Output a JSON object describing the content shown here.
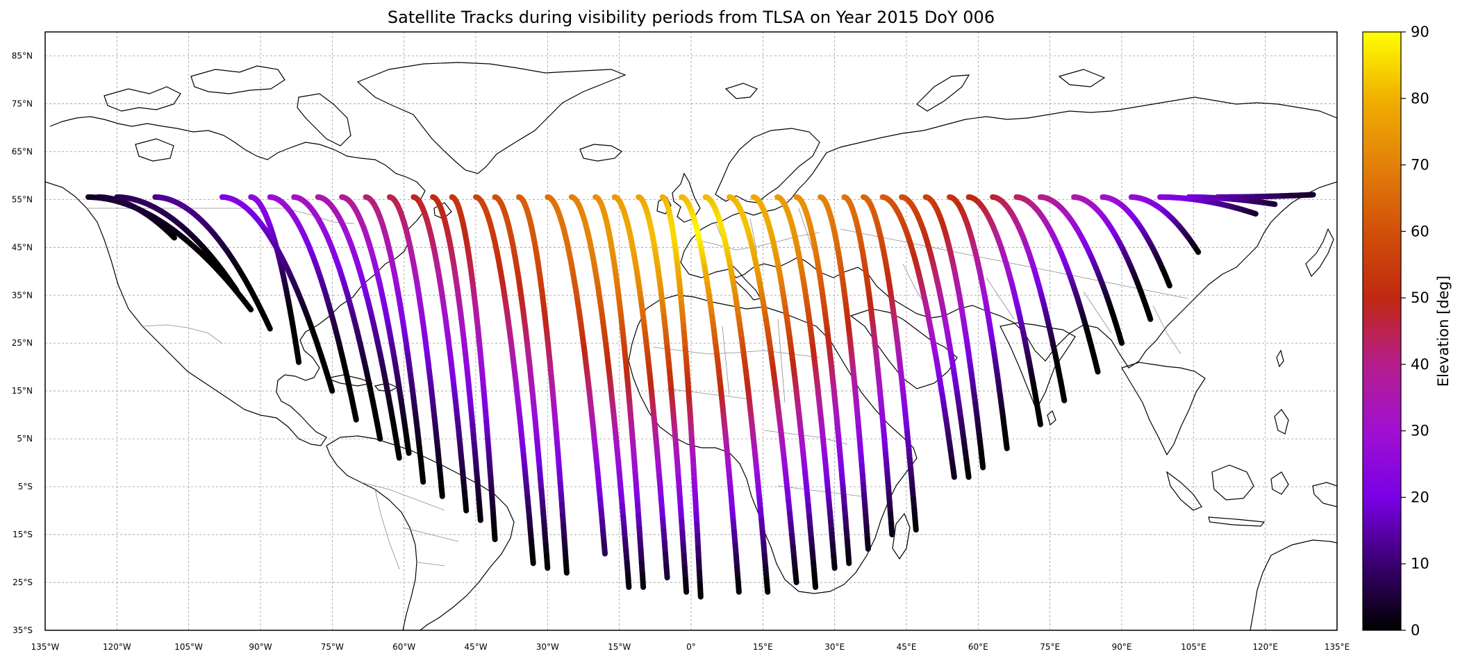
{
  "map": {
    "title": "Satellite Tracks during visibility periods from TLSA on Year 2015 DoY 006",
    "extent": {
      "lon_min": -135,
      "lon_max": 135,
      "lat_min": -35,
      "lat_max": 90
    },
    "lat_ticks": [
      {
        "value": 85,
        "label": "85°N"
      },
      {
        "value": 75,
        "label": "75°N"
      },
      {
        "value": 65,
        "label": "65°N"
      },
      {
        "value": 55,
        "label": "55°N"
      },
      {
        "value": 45,
        "label": "45°N"
      },
      {
        "value": 35,
        "label": "35°N"
      },
      {
        "value": 25,
        "label": "25°N"
      },
      {
        "value": 15,
        "label": "15°N"
      },
      {
        "value": 5,
        "label": "5°N"
      },
      {
        "value": -5,
        "label": "5°S"
      },
      {
        "value": -15,
        "label": "15°S"
      },
      {
        "value": -25,
        "label": "25°S"
      },
      {
        "value": -35,
        "label": "35°S"
      }
    ],
    "lon_ticks": [
      {
        "value": -135,
        "label": "135°W"
      },
      {
        "value": -120,
        "label": "120°W"
      },
      {
        "value": -105,
        "label": "105°W"
      },
      {
        "value": -90,
        "label": "90°W"
      },
      {
        "value": -75,
        "label": "75°W"
      },
      {
        "value": -60,
        "label": "60°W"
      },
      {
        "value": -45,
        "label": "45°W"
      },
      {
        "value": -30,
        "label": "30°W"
      },
      {
        "value": -15,
        "label": "15°W"
      },
      {
        "value": 0,
        "label": "0°"
      },
      {
        "value": 15,
        "label": "15°E"
      },
      {
        "value": 30,
        "label": "30°E"
      },
      {
        "value": 45,
        "label": "45°E"
      },
      {
        "value": 60,
        "label": "60°E"
      },
      {
        "value": 75,
        "label": "75°E"
      },
      {
        "value": 90,
        "label": "90°E"
      },
      {
        "value": 105,
        "label": "105°E"
      },
      {
        "value": 120,
        "label": "120°E"
      },
      {
        "value": 135,
        "label": "135°E"
      }
    ],
    "station": {
      "lon": 2,
      "lat": 48
    },
    "colorbar": {
      "label": "Elevation [deg]",
      "min": 0,
      "max": 90,
      "ticks": [
        "0",
        "10",
        "20",
        "30",
        "40",
        "50",
        "60",
        "70",
        "80",
        "90"
      ],
      "colormap": "gnuplot",
      "stops": [
        "#000000",
        "#3a0070",
        "#7a00e6",
        "#a010d0",
        "#b51e8c",
        "#c02810",
        "#d2500a",
        "#e3800a",
        "#f0b000",
        "#ffff00"
      ]
    },
    "tracks": [
      {
        "lon_start": -126,
        "lon_end": -92,
        "lat_end": 32
      },
      {
        "lon_start": -124,
        "lon_end": -108,
        "lat_end": 47
      },
      {
        "lon_start": -120,
        "lon_end": -95,
        "lat_end": 36
      },
      {
        "lon_start": -112,
        "lon_end": -88,
        "lat_end": 28
      },
      {
        "lon_start": -98,
        "lon_end": -75,
        "lat_end": 15
      },
      {
        "lon_start": -92,
        "lon_end": -82,
        "lat_end": 21
      },
      {
        "lon_start": -88,
        "lon_end": -70,
        "lat_end": 9
      },
      {
        "lon_start": -83,
        "lon_end": -65,
        "lat_end": 5
      },
      {
        "lon_start": -78,
        "lon_end": -61,
        "lat_end": 1
      },
      {
        "lon_start": -73,
        "lon_end": -59,
        "lat_end": 2
      },
      {
        "lon_start": -68,
        "lon_end": -56,
        "lat_end": -4
      },
      {
        "lon_start": -63,
        "lon_end": -52,
        "lat_end": -7
      },
      {
        "lon_start": -58,
        "lon_end": -47,
        "lat_end": -10
      },
      {
        "lon_start": -54,
        "lon_end": -44,
        "lat_end": -12
      },
      {
        "lon_start": -50,
        "lon_end": -41,
        "lat_end": -16
      },
      {
        "lon_start": -45,
        "lon_end": -33,
        "lat_end": -21
      },
      {
        "lon_start": -41,
        "lon_end": -30,
        "lat_end": -22
      },
      {
        "lon_start": -36,
        "lon_end": -26,
        "lat_end": -23
      },
      {
        "lon_start": -30,
        "lon_end": -18,
        "lat_end": -19
      },
      {
        "lon_start": -25,
        "lon_end": -13,
        "lat_end": -26
      },
      {
        "lon_start": -20,
        "lon_end": -10,
        "lat_end": -26
      },
      {
        "lon_start": -16,
        "lon_end": -5,
        "lat_end": -24
      },
      {
        "lon_start": -11,
        "lon_end": -1,
        "lat_end": -27
      },
      {
        "lon_start": -6,
        "lon_end": 2,
        "lat_end": -28
      },
      {
        "lon_start": -2,
        "lon_end": 10,
        "lat_end": -27
      },
      {
        "lon_start": 3,
        "lon_end": 16,
        "lat_end": -27
      },
      {
        "lon_start": 8,
        "lon_end": 22,
        "lat_end": -25
      },
      {
        "lon_start": 13,
        "lon_end": 26,
        "lat_end": -26
      },
      {
        "lon_start": 18,
        "lon_end": 30,
        "lat_end": -22
      },
      {
        "lon_start": 22,
        "lon_end": 33,
        "lat_end": -21
      },
      {
        "lon_start": 27,
        "lon_end": 37,
        "lat_end": -18
      },
      {
        "lon_start": 32,
        "lon_end": 42,
        "lat_end": -15
      },
      {
        "lon_start": 36,
        "lon_end": 47,
        "lat_end": -14
      },
      {
        "lon_start": 40,
        "lon_end": 55,
        "lat_end": -3
      },
      {
        "lon_start": 44,
        "lon_end": 58,
        "lat_end": -3
      },
      {
        "lon_start": 49,
        "lon_end": 61,
        "lat_end": -1
      },
      {
        "lon_start": 54,
        "lon_end": 66,
        "lat_end": 3
      },
      {
        "lon_start": 58,
        "lon_end": 73,
        "lat_end": 8
      },
      {
        "lon_start": 63,
        "lon_end": 78,
        "lat_end": 13
      },
      {
        "lon_start": 68,
        "lon_end": 85,
        "lat_end": 19
      },
      {
        "lon_start": 73,
        "lon_end": 90,
        "lat_end": 25
      },
      {
        "lon_start": 80,
        "lon_end": 96,
        "lat_end": 30
      },
      {
        "lon_start": 86,
        "lon_end": 100,
        "lat_end": 37
      },
      {
        "lon_start": 92,
        "lon_end": 106,
        "lat_end": 44
      },
      {
        "lon_start": 98,
        "lon_end": 118,
        "lat_end": 52
      },
      {
        "lon_start": 104,
        "lon_end": 122,
        "lat_end": 54
      },
      {
        "lon_start": 110,
        "lon_end": 130,
        "lat_end": 56
      }
    ]
  }
}
